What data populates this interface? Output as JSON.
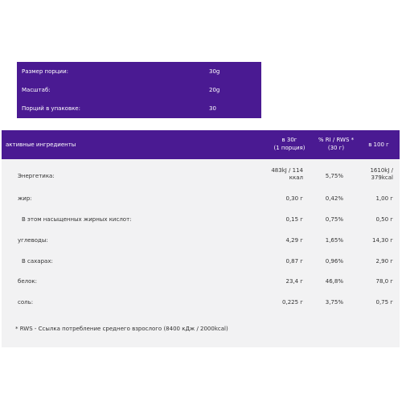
{
  "serving": {
    "rows": [
      {
        "label": "Размер порции:",
        "value": "30g"
      },
      {
        "label": "Масштаб:",
        "value": "20g"
      },
      {
        "label": "Порций в упаковке:",
        "value": "30"
      }
    ]
  },
  "nutrition": {
    "header": {
      "title": "активные ингредиенты",
      "col1_line1": "в 30г",
      "col1_line2": "(1 порция)",
      "col2_line1": "% RI / RWS *",
      "col2_line2": "(30 г)",
      "col3": "в 100 г"
    },
    "rows": [
      {
        "label": "Энергетика:",
        "v1a": "483kJ / 114",
        "v1b": "ккал",
        "v2": "5,75%",
        "v3a": "1610kJ /",
        "v3b": "379kcal"
      },
      {
        "label": "жир:",
        "v1": "0,30 г",
        "v2": "0,42%",
        "v3": "1,00 г"
      },
      {
        "label": "В этом насыщенных жирных кислот:",
        "v1": "0,15 г",
        "v2": "0,75%",
        "v3": "0,50 г"
      },
      {
        "label": "углеводы:",
        "v1": "4,29 г",
        "v2": "1,65%",
        "v3": "14,30 г"
      },
      {
        "label": "В сахарах:",
        "v1": "0,87 г",
        "v2": "0,96%",
        "v3": "2,90 г"
      },
      {
        "label": "белок:",
        "v1": "23,4 г",
        "v2": "46,8%",
        "v3": "78,0 г"
      },
      {
        "label": "соль:",
        "v1": "0,225 г",
        "v2": "3,75%",
        "v3": "0,75 г"
      }
    ],
    "footnote": "* RWS - Ссылка потребление среднего взрослого (8400 кДж / 2000kcal)"
  },
  "colors": {
    "header_bg": "#4a1a92",
    "table_bg": "#f2f2f3"
  }
}
